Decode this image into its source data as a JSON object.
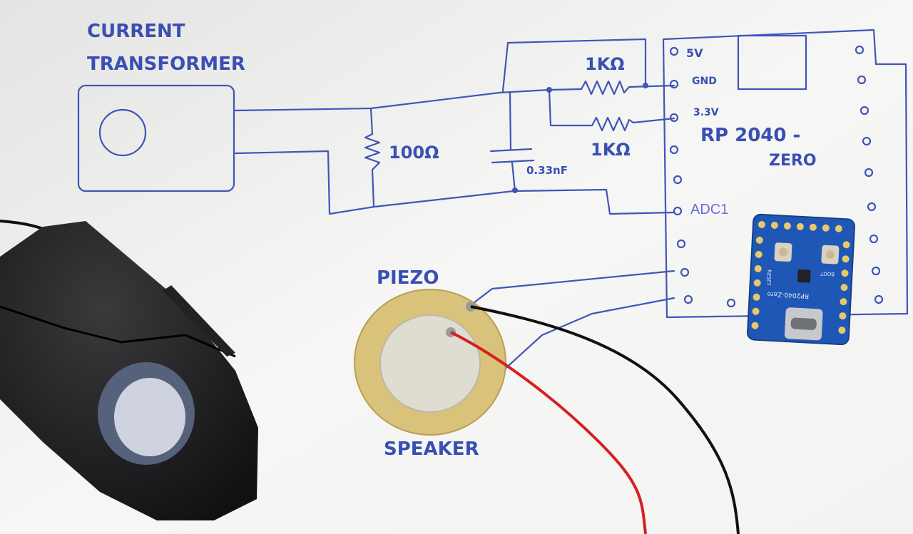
{
  "labels": {
    "ct_line1": "CURRENT",
    "ct_line2": "TRANSFORMER",
    "r100": "100Ω",
    "cap": "0.33nF",
    "r_top": "1KΩ",
    "r_bottom": "1KΩ",
    "pin_5v": "5V",
    "pin_gnd": "GND",
    "pin_33": "3.3V",
    "board_line1": "RP 2040 -",
    "board_line2": "ZERO",
    "adc": "ADC1",
    "piezo": "PIEZO",
    "speaker": "SPEAKER"
  },
  "module": {
    "name": "RP2040-Zero",
    "boot": "BOOT",
    "reset": "RESET"
  },
  "colors": {
    "ink": "#4055b8",
    "adc_label": "#6a6ce0",
    "module_pcb": "#1f57b6",
    "wire_red": "#d42020",
    "wire_black": "#111111",
    "piezo_brass": "#d9c27a"
  }
}
